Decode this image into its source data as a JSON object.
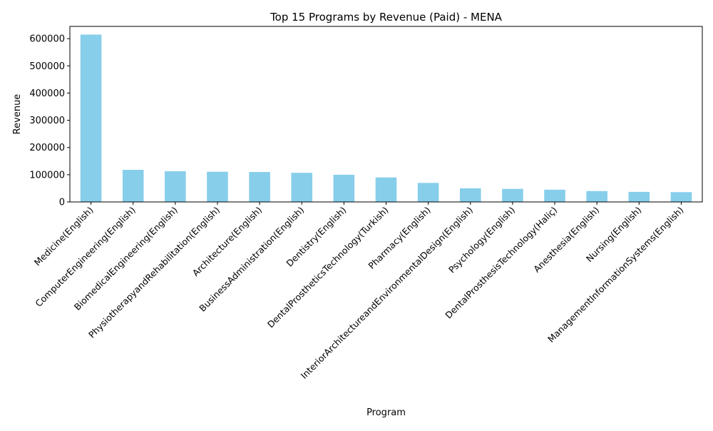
{
  "chart_data": {
    "type": "bar",
    "title": "Top 15 Programs by Revenue (Paid) - MENA",
    "xlabel": "Program",
    "ylabel": "Revenue",
    "ylim": [
      0,
      645000
    ],
    "yticks": [
      0,
      100000,
      200000,
      300000,
      400000,
      500000,
      600000
    ],
    "grid": false,
    "legend": "none",
    "bar_color": "#87CEEB",
    "categories": [
      "Medicine(English)",
      "ComputerEngineering(English)",
      "BiomedicalEngineering(English)",
      "PhysiotherapyandRehabilitation(English)",
      "Architecture(English)",
      "BusinessAdministration(English)",
      "Dentistry(English)",
      "DentalProstheticsTechnology(Turkish)",
      "Pharmacy(English)",
      "InteriorArchitectureandEnvironmentalDesign(English)",
      "Psychology(English)",
      "DentalProsthesisTechnology(Haliç)",
      "Anesthesia(English)",
      "Nursing(English)",
      "ManagementInformationSystems(English)"
    ],
    "values": [
      615000,
      118000,
      113000,
      111000,
      110000,
      107000,
      100000,
      90000,
      70000,
      50000,
      48000,
      45000,
      40000,
      37000,
      36000
    ]
  }
}
